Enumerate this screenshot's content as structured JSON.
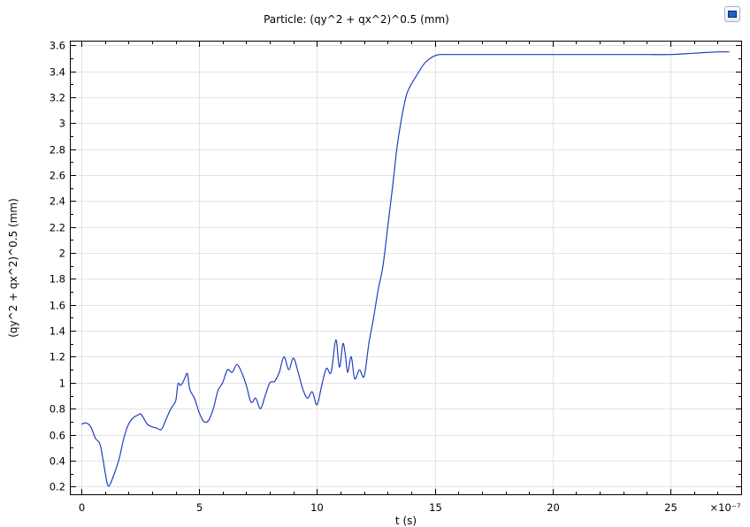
{
  "toolbar": {
    "icon": "plot-window-icon"
  },
  "chart_data": {
    "type": "line",
    "title": "Particle: (qy^2 + qx^2)^0.5 (mm)",
    "xlabel": "t (s)",
    "ylabel": "(qy^2 + qx^2)^0.5 (mm)",
    "x_multiplier": "×10⁻⁷",
    "xlim": [
      -0.45,
      28
    ],
    "ylim": [
      0.14,
      3.63
    ],
    "xticks": [
      0,
      5,
      10,
      15,
      20,
      25
    ],
    "yticks": [
      0.2,
      0.4,
      0.6,
      0.8,
      1,
      1.2,
      1.4,
      1.6,
      1.8,
      2,
      2.2,
      2.4,
      2.6,
      2.8,
      3,
      3.2,
      3.4,
      3.6
    ],
    "ytick_labels": [
      "0.2",
      "0.4",
      "0.6",
      "0.8",
      "1",
      "1.2",
      "1.4",
      "1.6",
      "1.8",
      "2",
      "2.2",
      "2.4",
      "2.6",
      "2.8",
      "3",
      "3.2",
      "3.4",
      "3.6"
    ],
    "grid": true,
    "colors": {
      "series": "#1f3fbf"
    },
    "series": [
      {
        "x": [
          0,
          0.2,
          0.4,
          0.6,
          0.8,
          1.0,
          1.1,
          1.2,
          1.4,
          1.6,
          1.8,
          2.0,
          2.2,
          2.4,
          2.5,
          2.6,
          2.8,
          3.0,
          3.2,
          3.4,
          3.6,
          3.8,
          4.0,
          4.1,
          4.2,
          4.3,
          4.4,
          4.5,
          4.6,
          4.8,
          5.0,
          5.2,
          5.4,
          5.6,
          5.8,
          6.0,
          6.2,
          6.4,
          6.6,
          6.8,
          7.0,
          7.2,
          7.4,
          7.6,
          7.8,
          8.0,
          8.2,
          8.4,
          8.6,
          8.8,
          9.0,
          9.2,
          9.4,
          9.6,
          9.8,
          10.0,
          10.2,
          10.4,
          10.6,
          10.8,
          10.95,
          11.1,
          11.2,
          11.3,
          11.45,
          11.6,
          11.8,
          12.0,
          12.2,
          12.4,
          12.6,
          12.8,
          13.0,
          13.2,
          13.4,
          13.6,
          13.8,
          14.0,
          14.2,
          14.4,
          14.6,
          14.8,
          15.0,
          15.2,
          15.4,
          15.6,
          15.8,
          16.0,
          16.2,
          16.5,
          17.0,
          17.5,
          18.0,
          19.0,
          20.0,
          21.0,
          22.0,
          23.0,
          24.0,
          25.0,
          26.0,
          27.0,
          27.5
        ],
        "y": [
          0.68,
          0.69,
          0.66,
          0.57,
          0.52,
          0.32,
          0.22,
          0.21,
          0.3,
          0.41,
          0.57,
          0.68,
          0.73,
          0.75,
          0.76,
          0.74,
          0.68,
          0.66,
          0.65,
          0.64,
          0.72,
          0.8,
          0.86,
          0.99,
          0.98,
          1.0,
          1.04,
          1.07,
          0.95,
          0.88,
          0.77,
          0.7,
          0.71,
          0.8,
          0.94,
          1.0,
          1.1,
          1.08,
          1.14,
          1.08,
          0.98,
          0.85,
          0.88,
          0.8,
          0.9,
          1.0,
          1.01,
          1.08,
          1.2,
          1.1,
          1.19,
          1.08,
          0.95,
          0.88,
          0.93,
          0.83,
          0.98,
          1.11,
          1.08,
          1.33,
          1.12,
          1.3,
          1.22,
          1.08,
          1.2,
          1.03,
          1.1,
          1.05,
          1.3,
          1.5,
          1.72,
          1.9,
          2.2,
          2.5,
          2.82,
          3.05,
          3.22,
          3.3,
          3.36,
          3.42,
          3.47,
          3.5,
          3.52,
          3.53,
          3.53,
          3.53,
          3.53,
          3.53,
          3.53,
          3.53,
          3.53,
          3.53,
          3.53,
          3.53,
          3.53,
          3.53,
          3.53,
          3.53,
          3.53,
          3.53,
          3.54,
          3.55,
          3.55
        ]
      }
    ]
  }
}
